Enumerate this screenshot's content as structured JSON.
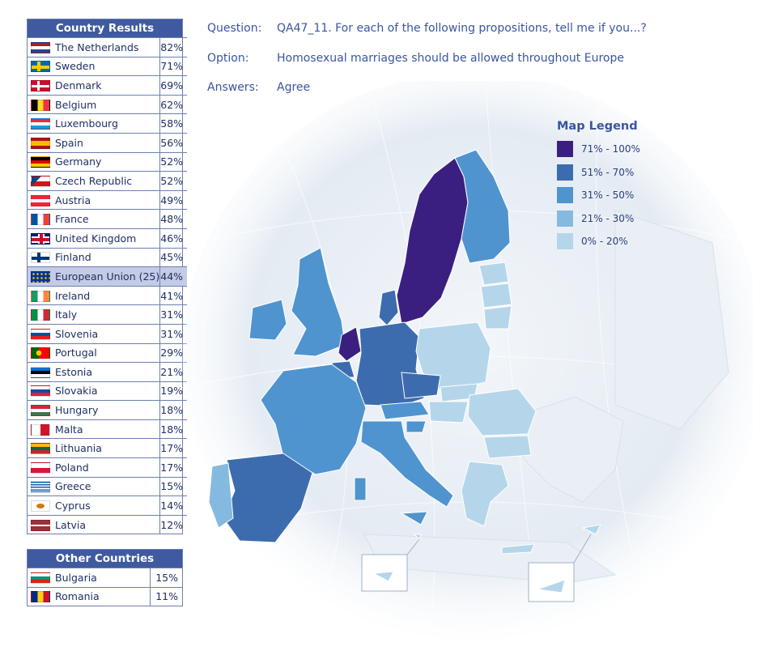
{
  "header": {
    "question_label": "Question:",
    "question_text": "QA47_11. For each of the following propositions, tell me if you...?",
    "option_label": "Option:",
    "option_text": "Homosexual marriages should be allowed throughout Europe",
    "answers_label": "Answers:",
    "answers_text": "Agree"
  },
  "country_results": {
    "title": "Country Results",
    "rows": [
      {
        "name": "The Netherlands",
        "pct": "82%",
        "value": 82,
        "flag": "netherlands-flag-icon"
      },
      {
        "name": "Sweden",
        "pct": "71%",
        "value": 71,
        "flag": "sweden-flag-icon"
      },
      {
        "name": "Denmark",
        "pct": "69%",
        "value": 69,
        "flag": "denmark-flag-icon"
      },
      {
        "name": "Belgium",
        "pct": "62%",
        "value": 62,
        "flag": "belgium-flag-icon"
      },
      {
        "name": "Luxembourg",
        "pct": "58%",
        "value": 58,
        "flag": "luxembourg-flag-icon"
      },
      {
        "name": "Spain",
        "pct": "56%",
        "value": 56,
        "flag": "spain-flag-icon"
      },
      {
        "name": "Germany",
        "pct": "52%",
        "value": 52,
        "flag": "germany-flag-icon"
      },
      {
        "name": "Czech Republic",
        "pct": "52%",
        "value": 52,
        "flag": "czech-flag-icon"
      },
      {
        "name": "Austria",
        "pct": "49%",
        "value": 49,
        "flag": "austria-flag-icon"
      },
      {
        "name": "France",
        "pct": "48%",
        "value": 48,
        "flag": "france-flag-icon"
      },
      {
        "name": "United Kingdom",
        "pct": "46%",
        "value": 46,
        "flag": "uk-flag-icon"
      },
      {
        "name": "Finland",
        "pct": "45%",
        "value": 45,
        "flag": "finland-flag-icon"
      },
      {
        "name": "European Union (25)",
        "pct": "44%",
        "value": 44,
        "flag": "eu-flag-icon",
        "highlight": true
      },
      {
        "name": "Ireland",
        "pct": "41%",
        "value": 41,
        "flag": "ireland-flag-icon"
      },
      {
        "name": "Italy",
        "pct": "31%",
        "value": 31,
        "flag": "italy-flag-icon"
      },
      {
        "name": "Slovenia",
        "pct": "31%",
        "value": 31,
        "flag": "slovenia-flag-icon"
      },
      {
        "name": "Portugal",
        "pct": "29%",
        "value": 29,
        "flag": "portugal-flag-icon"
      },
      {
        "name": "Estonia",
        "pct": "21%",
        "value": 21,
        "flag": "estonia-flag-icon"
      },
      {
        "name": "Slovakia",
        "pct": "19%",
        "value": 19,
        "flag": "slovakia-flag-icon"
      },
      {
        "name": "Hungary",
        "pct": "18%",
        "value": 18,
        "flag": "hungary-flag-icon"
      },
      {
        "name": "Malta",
        "pct": "18%",
        "value": 18,
        "flag": "malta-flag-icon"
      },
      {
        "name": "Lithuania",
        "pct": "17%",
        "value": 17,
        "flag": "lithuania-flag-icon"
      },
      {
        "name": "Poland",
        "pct": "17%",
        "value": 17,
        "flag": "poland-flag-icon"
      },
      {
        "name": "Greece",
        "pct": "15%",
        "value": 15,
        "flag": "greece-flag-icon"
      },
      {
        "name": "Cyprus",
        "pct": "14%",
        "value": 14,
        "flag": "cyprus-flag-icon"
      },
      {
        "name": "Latvia",
        "pct": "12%",
        "value": 12,
        "flag": "latvia-flag-icon"
      }
    ]
  },
  "other_countries": {
    "title": "Other Countries",
    "rows": [
      {
        "name": "Bulgaria",
        "pct": "15%",
        "value": 15,
        "flag": "bulgaria-flag-icon"
      },
      {
        "name": "Romania",
        "pct": "11%",
        "value": 11,
        "flag": "romania-flag-icon"
      }
    ]
  },
  "legend": {
    "title": "Map Legend",
    "items": [
      {
        "label": "71% - 100%",
        "color": "#3b1f80"
      },
      {
        "label": "51% - 70%",
        "color": "#3d6cae"
      },
      {
        "label": "31% - 50%",
        "color": "#4f94cf"
      },
      {
        "label": "21% - 30%",
        "color": "#84badf"
      },
      {
        "label": "0% - 20%",
        "color": "#b5d6ea"
      }
    ]
  },
  "colors": {
    "header_bg": "#3f5aa0",
    "eu_row_bg": "#c5cbe6",
    "map_land": "#e6edf3",
    "sea_glow": "#dfe6ef"
  }
}
